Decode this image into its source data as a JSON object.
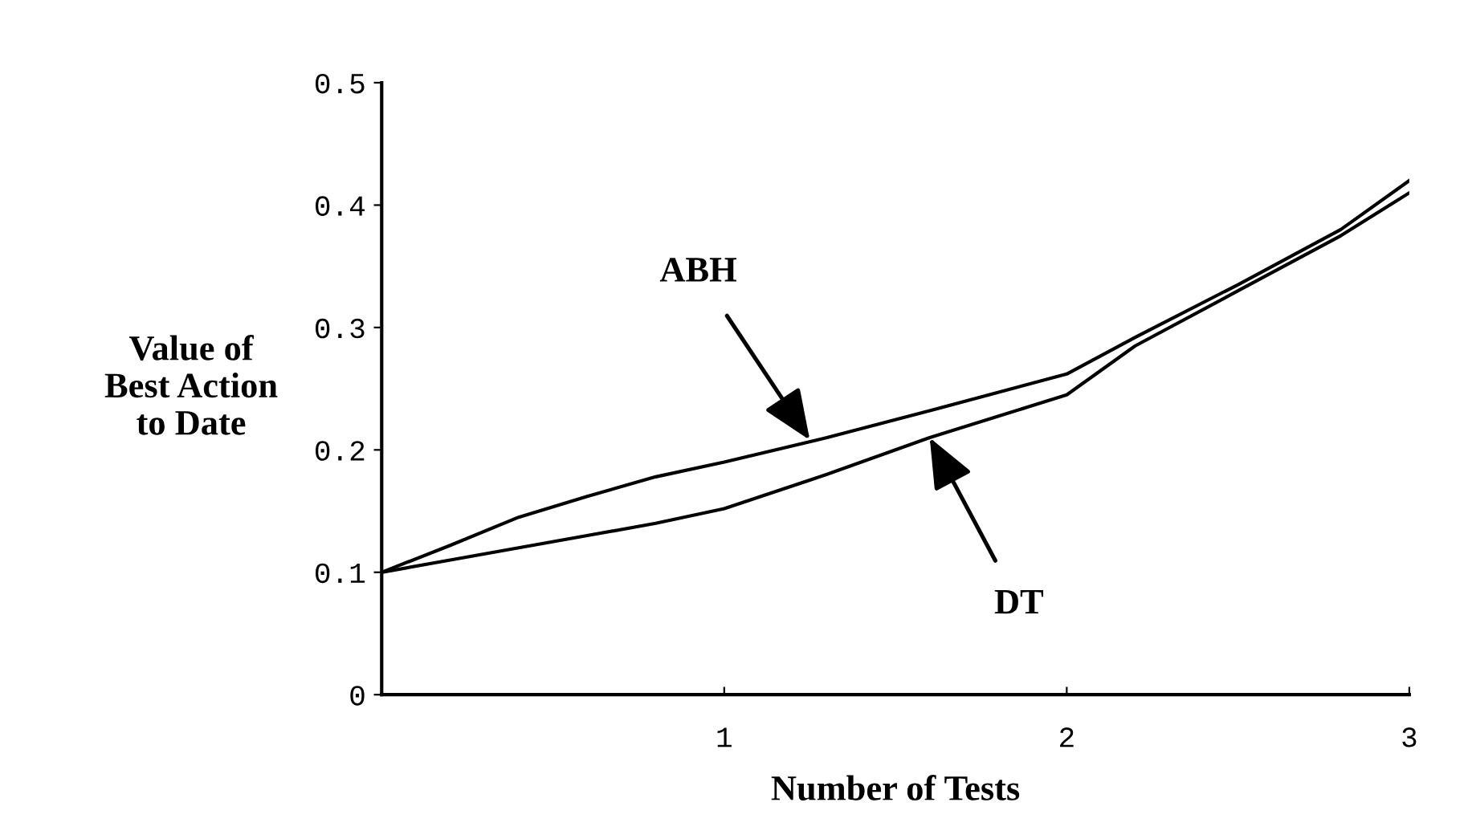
{
  "chart_data": {
    "type": "line",
    "xlabel": "Number of Tests",
    "ylabel": "Value of\nBest Action\nto Date",
    "x": [
      0,
      0.2,
      0.4,
      0.6,
      0.8,
      1.0,
      1.3,
      1.6,
      2.0,
      2.2,
      2.5,
      2.8,
      3.0
    ],
    "series": [
      {
        "color": "#000000",
        "values": [
          0.1,
          0.122,
          0.145,
          0.162,
          0.178,
          0.19,
          0.21,
          0.232,
          0.262,
          0.292,
          0.335,
          0.38,
          0.42
        ]
      },
      {
        "color": "#000000",
        "values": [
          0.1,
          0.11,
          0.12,
          0.13,
          0.14,
          0.152,
          0.18,
          0.21,
          0.245,
          0.285,
          0.33,
          0.375,
          0.41
        ]
      }
    ],
    "annotations": [
      {
        "text": "ABH",
        "x": 1.25,
        "y": 0.208
      },
      {
        "text": "DT",
        "x": 1.6,
        "y": 0.21
      }
    ],
    "xlim": [
      0,
      3
    ],
    "ylim": [
      0,
      0.5
    ],
    "xticks": [
      1,
      2,
      3
    ],
    "yticks": [
      0,
      0.1,
      0.2,
      0.3,
      0.4,
      0.5
    ],
    "grid": false,
    "legend": false,
    "marker": "none",
    "line_style": "solid"
  }
}
